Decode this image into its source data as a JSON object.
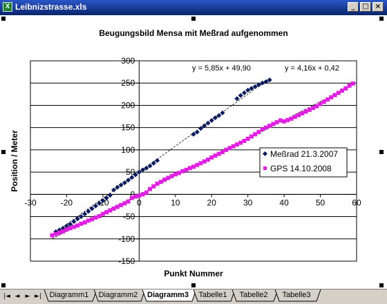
{
  "window": {
    "title": "Leibnizstrasse.xls",
    "app_icon": "excel-icon",
    "app_icon_glyph": "X",
    "controls": [
      {
        "name": "minimize-button",
        "glyph": "_"
      },
      {
        "name": "restore-button",
        "glyph": "□"
      },
      {
        "name": "close-button",
        "glyph": "×"
      }
    ]
  },
  "sheet_tabs": [
    "Diagramm1",
    "Diagramm2",
    "Diagramm3",
    "Tabelle1",
    "Tabelle2",
    "Tabelle3"
  ],
  "active_tab": "Diagramm3",
  "tab_nav": [
    "|◄",
    "◄",
    "►",
    "►|"
  ],
  "chart_data": {
    "type": "scatter",
    "title": "Beugungsbild Mensa mit Meßrad aufgenommen",
    "xlabel": "Punkt Nummer",
    "ylabel": "Position / Meter",
    "xlim": [
      -30,
      60
    ],
    "ylim": [
      -150,
      300
    ],
    "xticks": [
      -30,
      -20,
      -10,
      0,
      10,
      20,
      30,
      40,
      50,
      60
    ],
    "yticks": [
      -150,
      -100,
      -50,
      0,
      50,
      100,
      150,
      200,
      250,
      300
    ],
    "gridlines": "horizontal",
    "legend_position": "right",
    "colors": {
      "series1": "#0b1a5c",
      "series2": "#e020e0",
      "grid": "#000000",
      "trendline": "#000000"
    },
    "series": [
      {
        "name": "Meßrad 21.3.2007",
        "marker": "diamond",
        "color": "#0b1a5c",
        "x": [
          -23,
          -22,
          -21,
          -20,
          -19,
          -18,
          -17,
          -16,
          -15,
          -14,
          -13,
          -12,
          -11,
          -10,
          -9,
          -8,
          -7,
          -6,
          -5,
          -4,
          -3,
          -2,
          -1,
          0,
          1,
          2,
          3,
          4,
          5,
          15,
          16,
          17,
          18,
          19,
          20,
          21,
          22,
          23,
          27,
          28,
          29,
          30,
          31,
          32,
          33,
          34,
          35,
          36
        ],
        "y": [
          -84,
          -80,
          -76,
          -71,
          -67,
          -61,
          -55,
          -50,
          -44,
          -38,
          -32,
          -26,
          -20,
          -14,
          -8,
          -2,
          10,
          16,
          21,
          26,
          32,
          38,
          44,
          50,
          55,
          59,
          64,
          70,
          76,
          135,
          140,
          148,
          154,
          160,
          166,
          172,
          177,
          183,
          215,
          222,
          228,
          234,
          238,
          242,
          246,
          250,
          253,
          257
        ]
      },
      {
        "name": "GPS 14.10.2008",
        "marker": "square",
        "color": "#e020e0",
        "x": [
          -24,
          -23,
          -22,
          -21,
          -20,
          -19,
          -18,
          -17,
          -16,
          -15,
          -14,
          -13,
          -12,
          -11,
          -10,
          -9,
          -8,
          -7,
          -6,
          -5,
          -4,
          -3,
          -2,
          -1,
          0,
          1,
          2,
          3,
          4,
          5,
          6,
          7,
          8,
          9,
          10,
          11,
          12,
          13,
          14,
          15,
          16,
          17,
          18,
          19,
          20,
          21,
          22,
          23,
          24,
          25,
          26,
          27,
          28,
          29,
          30,
          31,
          32,
          33,
          34,
          35,
          36,
          37,
          38,
          39,
          40,
          41,
          42,
          43,
          44,
          45,
          46,
          47,
          48,
          49,
          50,
          51,
          52,
          53,
          54,
          55,
          56,
          57,
          58,
          59
        ],
        "y": [
          -92,
          -89,
          -86,
          -83,
          -79,
          -76,
          -73,
          -70,
          -66,
          -63,
          -59,
          -56,
          -52,
          -49,
          -44,
          -40,
          -36,
          -32,
          -28,
          -24,
          -20,
          -16,
          -8,
          -5,
          -3,
          0,
          4,
          12,
          18,
          24,
          28,
          33,
          37,
          41,
          45,
          48,
          52,
          55,
          59,
          62,
          66,
          70,
          74,
          78,
          83,
          87,
          91,
          95,
          100,
          104,
          108,
          112,
          116,
          120,
          125,
          130,
          135,
          140,
          146,
          150,
          154,
          158,
          162,
          166,
          164,
          167,
          170,
          174,
          178,
          182,
          186,
          190,
          194,
          198,
          203,
          208,
          213,
          218,
          223,
          228,
          233,
          238,
          244,
          249
        ]
      }
    ],
    "trendlines": [
      {
        "series": "Meßrad 21.3.2007",
        "label": "y = 5,85x + 49,90",
        "slope": 5.85,
        "intercept": 49.9,
        "x_range": [
          -23,
          36
        ]
      },
      {
        "series": "GPS 14.10.2008",
        "label": "y = 4,16x + 0,42",
        "slope": 4.16,
        "intercept": 0.42,
        "x_range": [
          -24,
          59
        ]
      }
    ]
  }
}
